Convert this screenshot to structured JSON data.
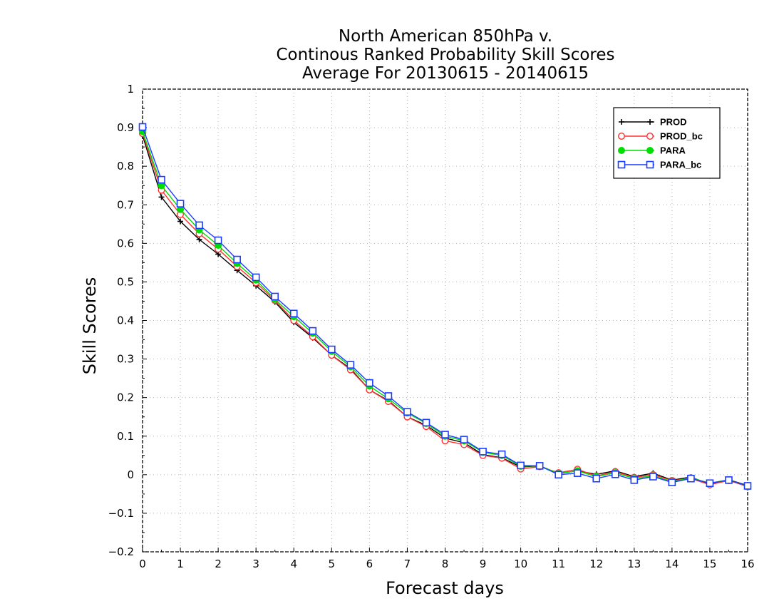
{
  "chart_data": {
    "type": "line",
    "title": [
      "North American 850hPa v.",
      "Continous Ranked Probability Skill Scores",
      "Average For 20130615 - 20140615"
    ],
    "xlabel": "Forecast days",
    "ylabel": "Skill Scores",
    "xlim": [
      0,
      16
    ],
    "ylim": [
      -0.2,
      1
    ],
    "xticks": [
      "0",
      "1",
      "2",
      "3",
      "4",
      "5",
      "6",
      "7",
      "8",
      "9",
      "10",
      "11",
      "12",
      "13",
      "14",
      "15",
      "16"
    ],
    "yticks": [
      "−0.2",
      "−0.1",
      "0",
      "0.1",
      "0.2",
      "0.3",
      "0.4",
      "0.5",
      "0.6",
      "0.7",
      "0.8",
      "0.9",
      "1"
    ],
    "grid": true,
    "legend_position": "top-right",
    "x": [
      0,
      0.5,
      1,
      1.5,
      2,
      2.5,
      3,
      3.5,
      4,
      4.5,
      5,
      5.5,
      6,
      6.5,
      7,
      7.5,
      8,
      8.5,
      9,
      9.5,
      10,
      10.5,
      11,
      11.5,
      12,
      12.5,
      13,
      13.5,
      14,
      14.5,
      15,
      15.5,
      16
    ],
    "series": [
      {
        "name": "PROD",
        "color": "#000000",
        "marker": "plus",
        "values": [
          0.88,
          0.72,
          0.657,
          0.61,
          0.572,
          0.53,
          0.49,
          0.448,
          0.395,
          0.355,
          0.31,
          0.275,
          0.22,
          0.192,
          0.15,
          0.128,
          0.095,
          0.083,
          0.052,
          0.044,
          0.02,
          0.023,
          0.003,
          0.01,
          0.001,
          0.01,
          -0.005,
          0.004,
          -0.014,
          -0.006,
          -0.025,
          -0.013,
          -0.028
        ]
      },
      {
        "name": "PROD_bc",
        "color": "#ff3030",
        "marker": "circle",
        "values": [
          0.885,
          0.738,
          0.675,
          0.625,
          0.585,
          0.54,
          0.498,
          0.452,
          0.4,
          0.358,
          0.31,
          0.272,
          0.22,
          0.19,
          0.15,
          0.125,
          0.088,
          0.078,
          0.05,
          0.043,
          0.015,
          0.021,
          0.005,
          0.014,
          -0.003,
          0.008,
          -0.007,
          0.0,
          -0.015,
          -0.01,
          -0.026,
          -0.015,
          -0.031
        ]
      },
      {
        "name": "PARA",
        "color": "#00dd00",
        "marker": "filled-circle",
        "values": [
          0.89,
          0.75,
          0.688,
          0.635,
          0.595,
          0.548,
          0.505,
          0.455,
          0.41,
          0.367,
          0.32,
          0.28,
          0.23,
          0.197,
          0.16,
          0.133,
          0.1,
          0.088,
          0.058,
          0.05,
          0.022,
          0.023,
          0.003,
          0.01,
          -0.005,
          0.005,
          -0.01,
          -0.003,
          -0.018,
          -0.008,
          -0.022,
          -0.013,
          -0.03
        ]
      },
      {
        "name": "PARA_bc",
        "color": "#1a3cff",
        "marker": "square",
        "values": [
          0.902,
          0.765,
          0.703,
          0.647,
          0.608,
          0.558,
          0.512,
          0.462,
          0.418,
          0.373,
          0.325,
          0.285,
          0.238,
          0.204,
          0.163,
          0.135,
          0.104,
          0.091,
          0.06,
          0.053,
          0.024,
          0.023,
          0.0,
          0.004,
          -0.01,
          0.001,
          -0.014,
          -0.005,
          -0.02,
          -0.01,
          -0.022,
          -0.014,
          -0.029
        ]
      }
    ]
  }
}
